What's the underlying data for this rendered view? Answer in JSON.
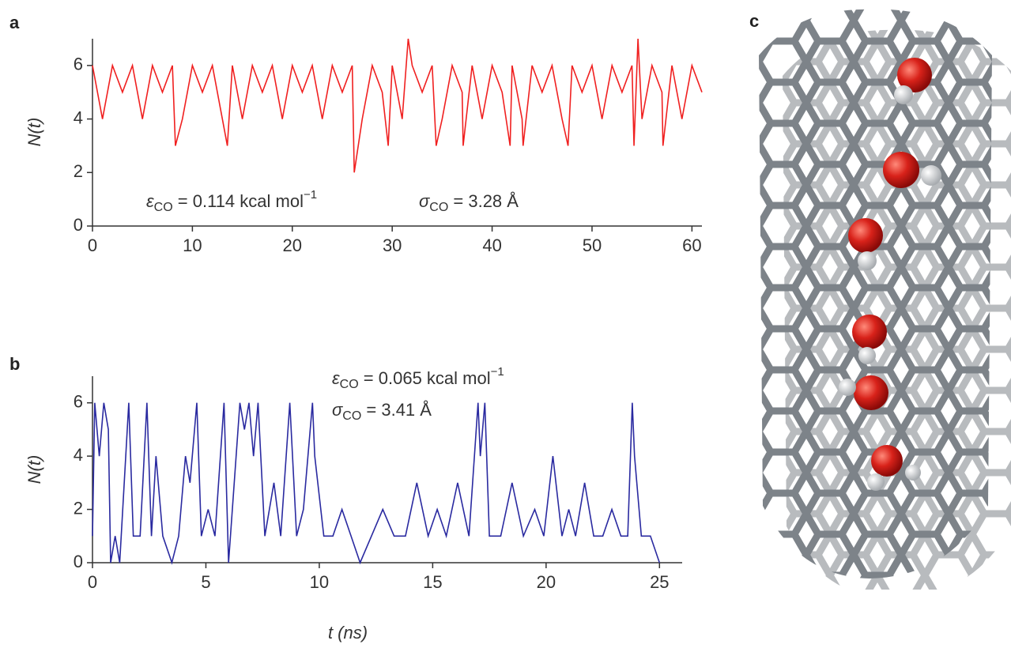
{
  "chart_data": [
    {
      "type": "line",
      "panel_label": "a",
      "y_label": "N(t)",
      "color": "#f02020",
      "x": [
        0,
        1,
        2,
        3,
        4,
        5,
        6,
        7,
        8,
        8.3,
        9,
        10,
        11,
        12,
        13,
        13.5,
        14,
        15,
        16,
        17,
        18,
        19,
        20,
        21,
        22,
        23,
        24,
        25,
        26,
        26.2,
        27,
        28,
        29,
        29.6,
        30,
        31,
        31.6,
        32,
        33,
        34,
        34.4,
        35,
        36,
        37,
        37.1,
        38,
        39,
        40,
        41,
        41.8,
        42,
        43,
        43.1,
        44,
        45,
        46,
        47,
        47.6,
        48,
        49,
        50,
        51,
        52,
        53,
        54,
        54.2,
        54.6,
        55,
        56,
        57,
        57.1,
        58,
        59,
        60,
        61
      ],
      "values": [
        6,
        4,
        6,
        5,
        6,
        4,
        6,
        5,
        6,
        3,
        4,
        6,
        5,
        6,
        4,
        3,
        6,
        4,
        6,
        5,
        6,
        4,
        6,
        5,
        6,
        4,
        6,
        5,
        6,
        2,
        4,
        6,
        5,
        3,
        6,
        4,
        7,
        6,
        5,
        6,
        3,
        4,
        6,
        5,
        3,
        6,
        4,
        6,
        5,
        3,
        6,
        4,
        3,
        6,
        5,
        6,
        4,
        3,
        6,
        5,
        6,
        4,
        6,
        5,
        6,
        3,
        7,
        4,
        6,
        5,
        3,
        6,
        4,
        6,
        5
      ],
      "xlim": [
        0,
        61
      ],
      "xticks": [
        0,
        10,
        20,
        30,
        40,
        50,
        60
      ],
      "ylim": [
        0,
        7
      ],
      "yticks": [
        0,
        2,
        4,
        6
      ],
      "annotations": [
        {
          "symbol": "ε",
          "subscript": "CO",
          "text": " = 0.114 kcal mol",
          "superscript": "−1"
        },
        {
          "symbol": "σ",
          "subscript": "CO",
          "text": " = 3.28 Å"
        }
      ]
    },
    {
      "type": "line",
      "panel_label": "b",
      "y_label": "N(t)",
      "x_label": "t (ns)",
      "color": "#2a2aa0",
      "x": [
        0,
        0.1,
        0.3,
        0.5,
        0.7,
        0.8,
        1,
        1.2,
        1.6,
        1.8,
        2.1,
        2.4,
        2.6,
        2.8,
        3.1,
        3.5,
        3.8,
        4.1,
        4.3,
        4.6,
        4.8,
        5.1,
        5.4,
        5.8,
        6,
        6.5,
        6.7,
        6.9,
        7.1,
        7.3,
        7.6,
        8,
        8.3,
        8.7,
        9,
        9.3,
        9.7,
        9.8,
        10.2,
        10.6,
        11,
        11.4,
        11.8,
        12.3,
        12.8,
        13.3,
        13.8,
        14.3,
        14.8,
        15.2,
        15.6,
        16.1,
        16.6,
        17,
        17.1,
        17.3,
        17.5,
        18,
        18.5,
        19,
        19.5,
        19.9,
        20.3,
        20.7,
        21,
        21.3,
        21.7,
        22.1,
        22.5,
        22.9,
        23.3,
        23.6,
        23.8,
        23.9,
        24.2,
        24.6,
        25
      ],
      "values": [
        1,
        6,
        4,
        6,
        5,
        0,
        1,
        0,
        6,
        1,
        1,
        6,
        1,
        4,
        1,
        0,
        1,
        4,
        3,
        6,
        1,
        2,
        1,
        6,
        0,
        6,
        5,
        6,
        4,
        6,
        1,
        3,
        1,
        6,
        1,
        2,
        6,
        4,
        1,
        1,
        2,
        1,
        0,
        1,
        2,
        1,
        1,
        3,
        1,
        2,
        1,
        3,
        1,
        6,
        4,
        6,
        1,
        1,
        3,
        1,
        2,
        1,
        4,
        1,
        2,
        1,
        3,
        1,
        1,
        2,
        1,
        1,
        6,
        4,
        1,
        1,
        0
      ],
      "xlim": [
        0,
        26
      ],
      "xticks": [
        0,
        5,
        10,
        15,
        20,
        25
      ],
      "ylim": [
        0,
        7
      ],
      "yticks": [
        0,
        2,
        4,
        6
      ],
      "annotations": [
        {
          "symbol": "ε",
          "subscript": "CO",
          "text": " = 0.065 kcal mol",
          "superscript": "−1"
        },
        {
          "symbol": "σ",
          "subscript": "CO",
          "text": " = 3.41 Å"
        }
      ]
    }
  ],
  "panel_c": {
    "label": "c"
  }
}
